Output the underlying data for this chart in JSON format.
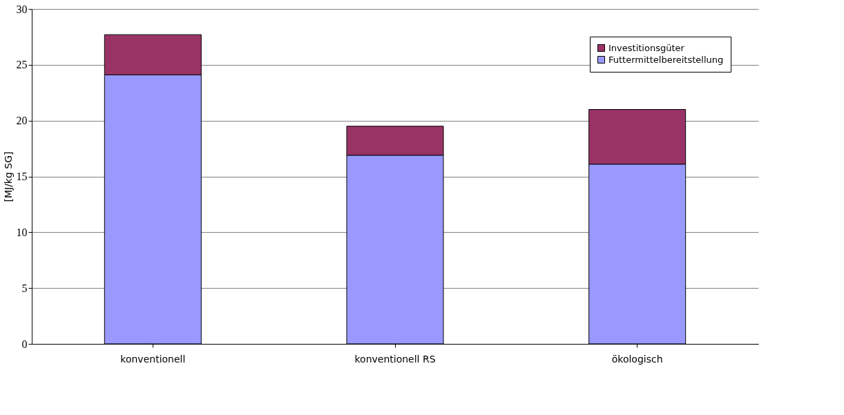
{
  "chart_data": {
    "type": "bar",
    "stacked": true,
    "ylabel": "[MJ/kg SG]",
    "categories": [
      "konventionell",
      "konventionell RS",
      "ökologisch"
    ],
    "series": [
      {
        "name": "Futtermittelbereitstellung",
        "color": "#9999ff",
        "values": [
          24.1,
          16.9,
          16.1
        ]
      },
      {
        "name": "Investitionsgüter",
        "color": "#993366",
        "values": [
          3.6,
          2.6,
          4.9
        ]
      }
    ],
    "ylim": [
      0,
      30
    ],
    "yticks": [
      0,
      5,
      10,
      15,
      20,
      25,
      30
    ],
    "grid": "y",
    "legend": "top right"
  }
}
